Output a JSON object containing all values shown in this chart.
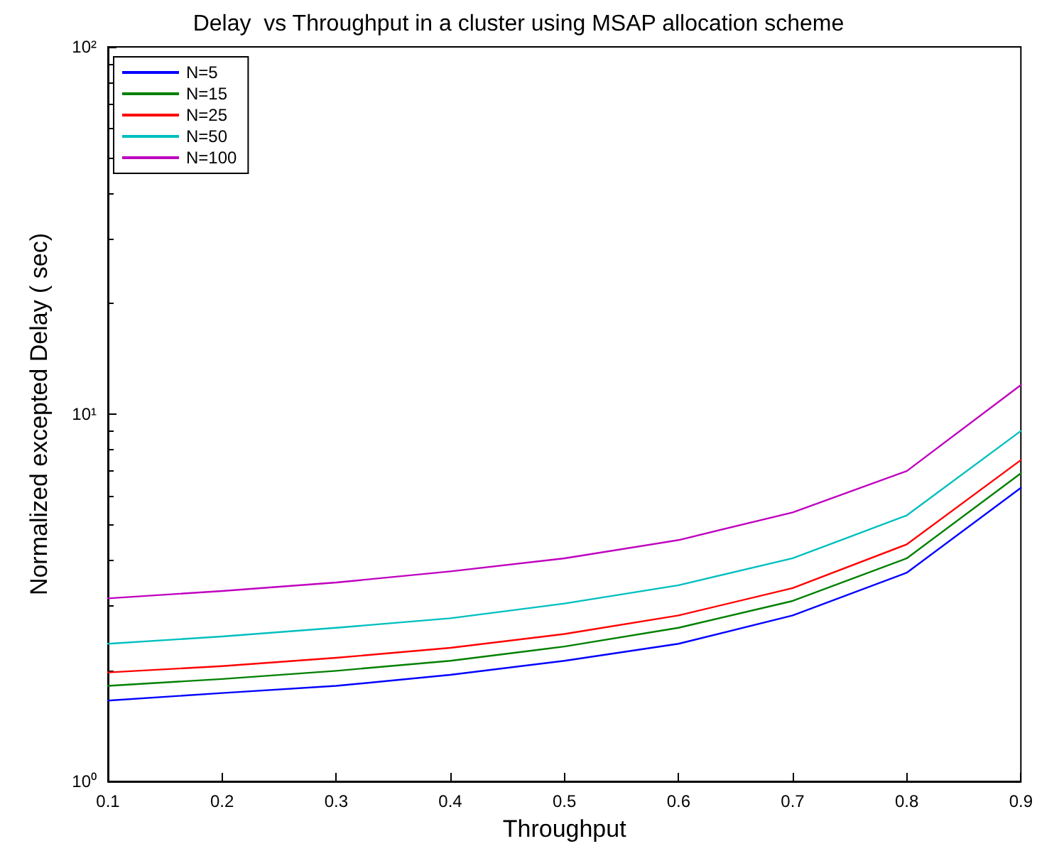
{
  "chart_data": {
    "type": "line",
    "title": "Delay  vs Throughput in a cluster using MSAP allocation scheme",
    "xlabel": "Throughput",
    "ylabel": "Normalized excepted Delay ( sec)",
    "x": [
      0.1,
      0.2,
      0.3,
      0.4,
      0.5,
      0.6,
      0.7,
      0.8,
      0.9
    ],
    "series": [
      {
        "name": "N=5",
        "color": "#0000ff",
        "values": [
          1.66,
          1.74,
          1.82,
          1.95,
          2.13,
          2.37,
          2.83,
          3.7,
          6.3
        ]
      },
      {
        "name": "N=15",
        "color": "#008000",
        "values": [
          1.82,
          1.9,
          2.0,
          2.13,
          2.33,
          2.62,
          3.1,
          4.05,
          6.9
        ]
      },
      {
        "name": "N=25",
        "color": "#ff0000",
        "values": [
          1.98,
          2.06,
          2.17,
          2.31,
          2.52,
          2.83,
          3.36,
          4.42,
          7.5
        ]
      },
      {
        "name": "N=50",
        "color": "#00bfbf",
        "values": [
          2.37,
          2.48,
          2.62,
          2.78,
          3.05,
          3.42,
          4.05,
          5.3,
          9.0
        ]
      },
      {
        "name": "N=100",
        "color": "#bf00bf",
        "values": [
          3.15,
          3.3,
          3.48,
          3.73,
          4.05,
          4.54,
          5.4,
          7.0,
          12.0
        ]
      }
    ],
    "xlim": [
      0.1,
      0.9
    ],
    "xticks": [
      0.1,
      0.2,
      0.3,
      0.4,
      0.5,
      0.6,
      0.7,
      0.8,
      0.9
    ],
    "ylim": [
      1,
      100
    ],
    "yticks": [
      {
        "value": 1,
        "label": "10⁰"
      },
      {
        "value": 10,
        "label": "10¹"
      },
      {
        "value": 100,
        "label": "10²"
      }
    ],
    "log": "y",
    "grid": false,
    "legend": "top left",
    "marker": "none",
    "line_style": "solid"
  }
}
